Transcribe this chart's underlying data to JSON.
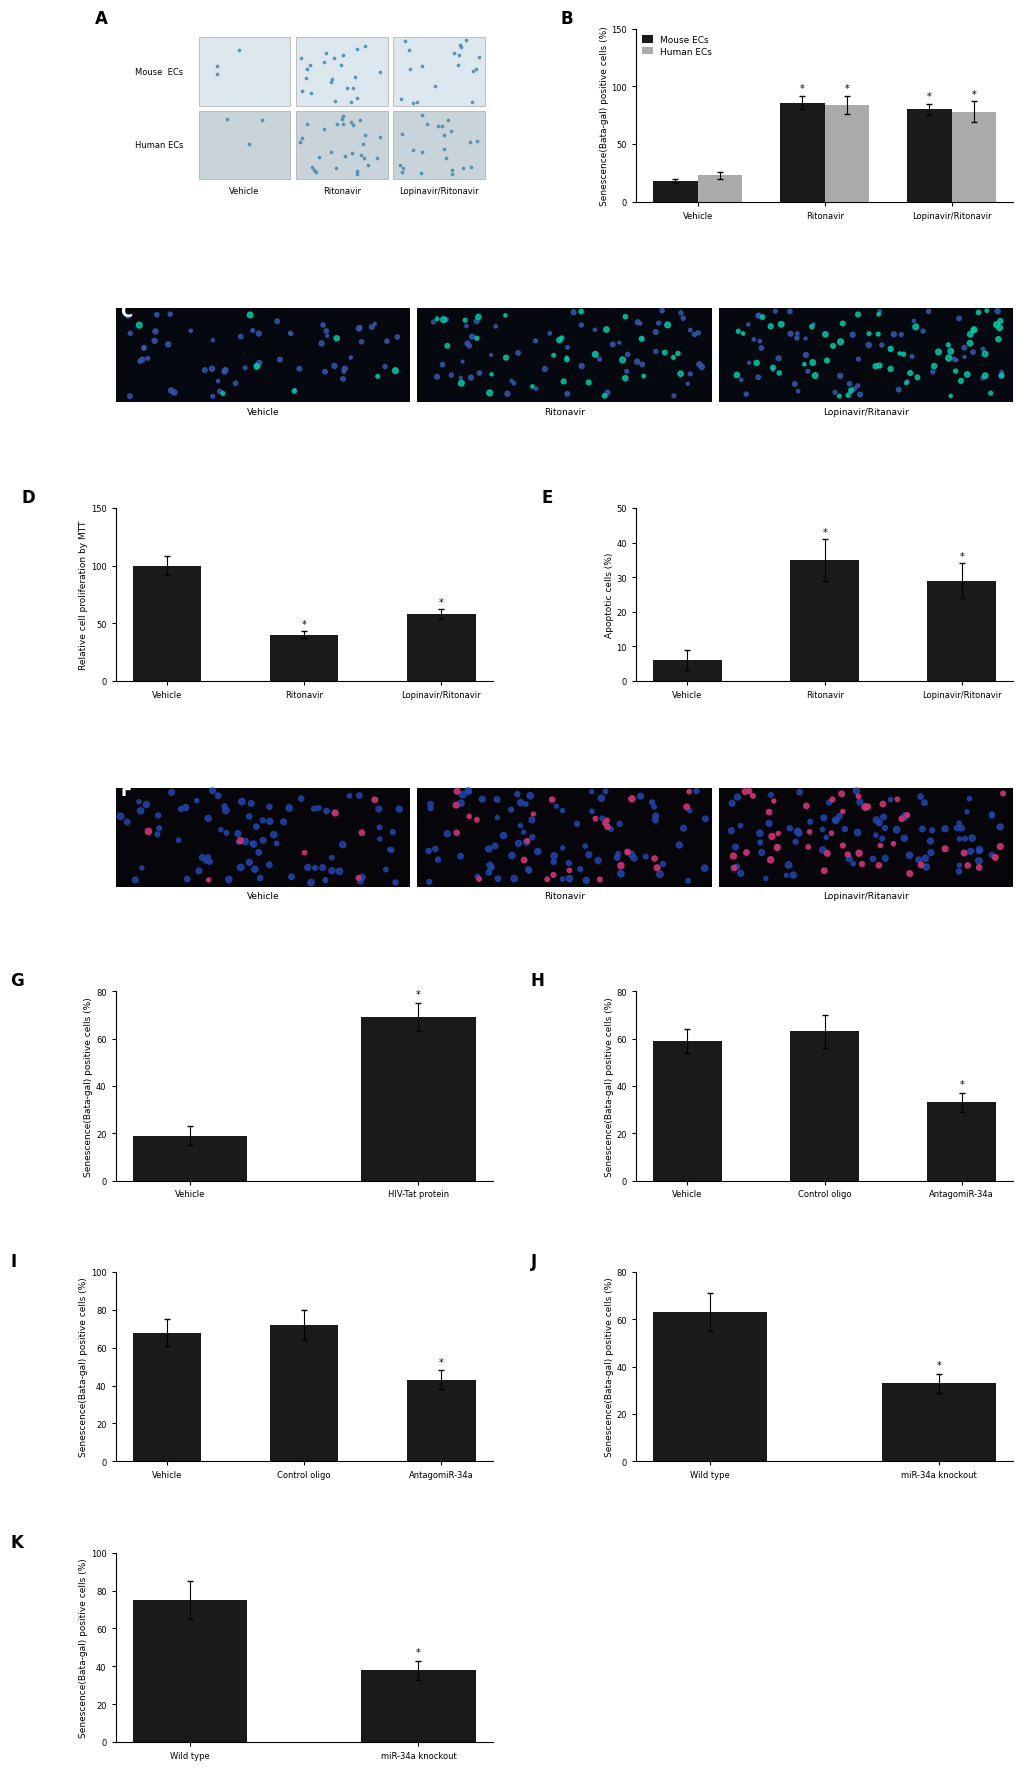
{
  "B": {
    "categories": [
      "Vehicle",
      "Ritonavir",
      "Lopinavir/Ritonavir"
    ],
    "mouse_values": [
      18,
      86,
      80
    ],
    "human_values": [
      23,
      84,
      78
    ],
    "mouse_errors": [
      2,
      6,
      5
    ],
    "human_errors": [
      3,
      8,
      9
    ],
    "mouse_color": "#1a1a1a",
    "human_color": "#aaaaaa",
    "ylabel": "Senescence(Bata-gal) positive cells (%)",
    "ylim": [
      0,
      150
    ],
    "yticks": [
      0,
      50,
      100,
      150
    ],
    "legend_mouse": "Mouse ECs",
    "legend_human": "Human ECs"
  },
  "D": {
    "categories": [
      "Vehicle",
      "Ritonavir",
      "Lopinavir/Ritonavir"
    ],
    "values": [
      100,
      40,
      58
    ],
    "errors": [
      8,
      3,
      4
    ],
    "color": "#1a1a1a",
    "ylabel": "Relative cell proliferation by MTT",
    "ylim": [
      0,
      150
    ],
    "yticks": [
      0,
      50,
      100,
      150
    ]
  },
  "E": {
    "categories": [
      "Vehicle",
      "Ritonavir",
      "Lopinavir/Ritonavir"
    ],
    "values": [
      6,
      35,
      29
    ],
    "errors": [
      3,
      6,
      5
    ],
    "color": "#1a1a1a",
    "ylabel": "Apoptotic cells (%)",
    "ylim": [
      0,
      50
    ],
    "yticks": [
      0,
      10,
      20,
      30,
      40,
      50
    ]
  },
  "G": {
    "categories": [
      "Vehicle",
      "HIV-Tat protein"
    ],
    "values": [
      19,
      69
    ],
    "errors": [
      4,
      6
    ],
    "color": "#1a1a1a",
    "ylabel": "Senescence(Bata-gal) positive cells (%)",
    "ylim": [
      0,
      80
    ],
    "yticks": [
      0,
      20,
      40,
      60,
      80
    ]
  },
  "H": {
    "categories": [
      "Vehicle",
      "Control oligo",
      "AntagomiR-34a"
    ],
    "values": [
      59,
      63,
      33
    ],
    "errors": [
      5,
      7,
      4
    ],
    "color": "#1a1a1a",
    "ylabel": "Senescence(Bata-gal) positive cells (%)",
    "ylim": [
      0,
      80
    ],
    "yticks": [
      0,
      20,
      40,
      60,
      80
    ]
  },
  "I": {
    "categories": [
      "Vehicle",
      "Control oligo",
      "AntagomiR-34a"
    ],
    "values": [
      68,
      72,
      43
    ],
    "errors": [
      7,
      8,
      5
    ],
    "color": "#1a1a1a",
    "ylabel": "Senescence(Bata-gal) positive cells (%)",
    "ylim": [
      0,
      100
    ],
    "yticks": [
      0,
      20,
      40,
      60,
      80,
      100
    ]
  },
  "J": {
    "categories": [
      "Wild type",
      "miR-34a knockout"
    ],
    "values": [
      63,
      33
    ],
    "errors": [
      8,
      4
    ],
    "color": "#1a1a1a",
    "ylabel": "Senescence(Bata-gal) positive cells (%)",
    "ylim": [
      0,
      80
    ],
    "yticks": [
      0,
      20,
      40,
      60,
      80
    ]
  },
  "K": {
    "categories": [
      "Wild type",
      "miR-34a knockout"
    ],
    "values": [
      75,
      38
    ],
    "errors": [
      10,
      5
    ],
    "color": "#1a1a1a",
    "ylabel": "Senescence(Bata-gal) positive cells (%)",
    "ylim": [
      0,
      100
    ],
    "yticks": [
      0,
      20,
      40,
      60,
      80,
      100
    ]
  },
  "bg_color": "#ffffff",
  "bar_width": 0.35,
  "fontsize_label": 6.5,
  "fontsize_tick": 6,
  "fontsize_panel": 12,
  "panel_C_labels": [
    "Vehicle",
    "Ritonavir",
    "Lopinavir/Ritanavir"
  ],
  "panel_F_labels": [
    "Vehicle",
    "Ritonavir",
    "Lopinavir/Ritanavir"
  ],
  "A_row_labels": [
    "Mouse  ECs",
    "Human ECs"
  ],
  "A_col_labels": [
    "Vehicle",
    "Ritonavir",
    "Lopinavir/Ritonavir"
  ]
}
